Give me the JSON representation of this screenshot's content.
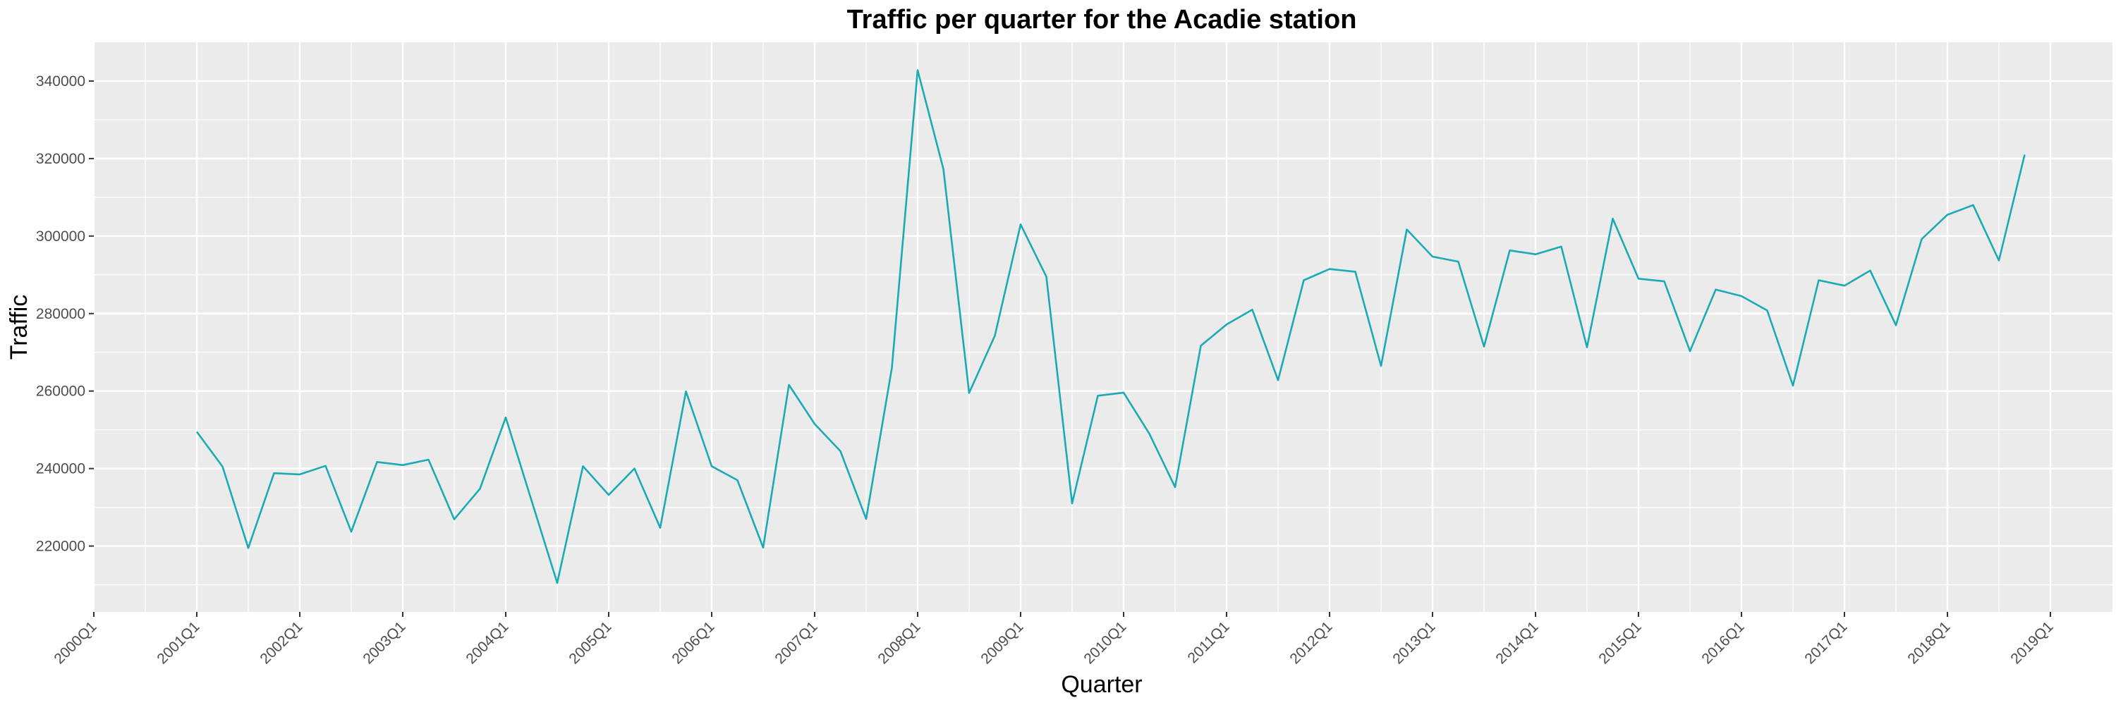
{
  "chart_data": {
    "type": "line",
    "title": "Traffic per quarter for the Acadie station",
    "xlabel": "Quarter",
    "ylabel": "Traffic",
    "x_tick_labels": [
      "2000Q1",
      "2001Q1",
      "2002Q1",
      "2003Q1",
      "2004Q1",
      "2005Q1",
      "2006Q1",
      "2007Q1",
      "2008Q1",
      "2009Q1",
      "2010Q1",
      "2011Q1",
      "2012Q1",
      "2013Q1",
      "2014Q1",
      "2015Q1",
      "2016Q1",
      "2017Q1",
      "2018Q1",
      "2019Q1"
    ],
    "y_ticks": [
      220000,
      240000,
      260000,
      280000,
      300000,
      320000,
      340000
    ],
    "y_tick_labels": [
      "220000",
      "240000",
      "260000",
      "280000",
      "300000",
      "320000",
      "340000"
    ],
    "ylim": [
      203000,
      350000
    ],
    "grid": true,
    "series": [
      {
        "color": "#1aabb5",
        "x": [
          "2001Q1",
          "2001Q2",
          "2001Q3",
          "2001Q4",
          "2002Q1",
          "2002Q2",
          "2002Q3",
          "2002Q4",
          "2003Q1",
          "2003Q2",
          "2003Q3",
          "2003Q4",
          "2004Q1",
          "2004Q2",
          "2004Q3",
          "2004Q4",
          "2005Q1",
          "2005Q2",
          "2005Q3",
          "2005Q4",
          "2006Q1",
          "2006Q2",
          "2006Q3",
          "2006Q4",
          "2007Q1",
          "2007Q2",
          "2007Q3",
          "2007Q4",
          "2008Q1",
          "2008Q2",
          "2008Q3",
          "2008Q4",
          "2009Q1",
          "2009Q2",
          "2009Q3",
          "2009Q4",
          "2010Q1",
          "2010Q2",
          "2010Q3",
          "2010Q4",
          "2011Q1",
          "2011Q2",
          "2011Q3",
          "2011Q4",
          "2012Q1",
          "2012Q2",
          "2012Q3",
          "2012Q4",
          "2013Q1",
          "2013Q2",
          "2013Q3",
          "2013Q4",
          "2014Q1",
          "2014Q2",
          "2014Q3",
          "2014Q4",
          "2015Q1",
          "2015Q2",
          "2015Q3",
          "2015Q4",
          "2016Q1",
          "2016Q2",
          "2016Q3",
          "2016Q4",
          "2017Q1",
          "2017Q2",
          "2017Q3",
          "2017Q4",
          "2018Q1",
          "2018Q2",
          "2018Q3",
          "2018Q4"
        ],
        "values": [
          249500,
          240500,
          219500,
          238800,
          238500,
          240700,
          223700,
          241700,
          240900,
          242300,
          226900,
          234800,
          253200,
          231800,
          210500,
          240600,
          233200,
          240000,
          224700,
          259900,
          240600,
          237000,
          219600,
          261600,
          251500,
          244500,
          227000,
          266000,
          342800,
          317300,
          259500,
          274300,
          303000,
          289500,
          231000,
          258800,
          259600,
          249000,
          235200,
          271700,
          277200,
          281000,
          262800,
          288600,
          291500,
          290800,
          266500,
          301700,
          294700,
          293400,
          271500,
          296300,
          295300,
          297300,
          271300,
          304500,
          289000,
          288300,
          270300,
          286200,
          284500,
          280800,
          261400,
          288600,
          287200,
          291100,
          277000,
          299200,
          305500,
          308000,
          293700,
          321000
        ]
      }
    ]
  }
}
